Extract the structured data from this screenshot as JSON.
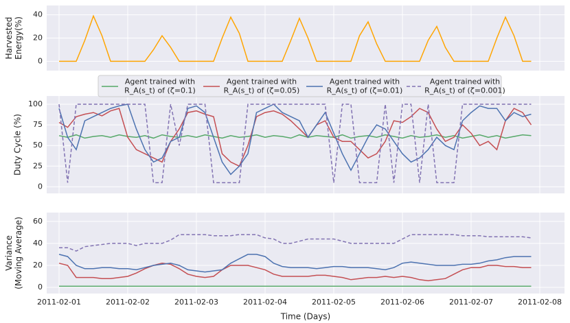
{
  "chart_data": [
    {
      "type": "line",
      "ylabel": "Harvested\nEnergy(%)",
      "x": [
        0,
        0.125,
        0.25,
        0.375,
        0.5,
        0.625,
        0.75,
        0.875,
        1,
        1.125,
        1.25,
        1.375,
        1.5,
        1.625,
        1.75,
        1.875,
        2,
        2.125,
        2.25,
        2.375,
        2.5,
        2.625,
        2.75,
        2.875,
        3,
        3.125,
        3.25,
        3.375,
        3.5,
        3.625,
        3.75,
        3.875,
        4,
        4.125,
        4.25,
        4.375,
        4.5,
        4.625,
        4.75,
        4.875,
        5,
        5.125,
        5.25,
        5.375,
        5.5,
        5.625,
        5.75,
        5.875,
        6,
        6.125,
        6.25,
        6.375,
        6.5,
        6.625,
        6.75,
        6.875
      ],
      "series": [
        {
          "name": "Harvested Energy",
          "color": "#ffa500",
          "dash": false,
          "values": [
            0,
            0,
            0,
            18,
            39,
            22,
            0,
            0,
            0,
            0,
            0,
            10,
            22,
            12,
            0,
            0,
            0,
            0,
            0,
            20,
            38,
            24,
            0,
            0,
            0,
            0,
            0,
            18,
            37,
            20,
            0,
            0,
            0,
            0,
            0,
            22,
            34,
            15,
            0,
            0,
            0,
            0,
            0,
            18,
            30,
            12,
            0,
            0,
            0,
            0,
            0,
            20,
            38,
            22,
            0,
            0
          ]
        }
      ],
      "xlim": [
        -0.18,
        7.36
      ],
      "ylim": [
        -8,
        48
      ],
      "yticks": [
        0,
        20,
        40
      ],
      "grid": true
    },
    {
      "type": "line",
      "ylabel": "Duty Cycle (%)",
      "x": [
        0,
        0.125,
        0.25,
        0.375,
        0.5,
        0.625,
        0.75,
        0.875,
        1,
        1.125,
        1.25,
        1.375,
        1.5,
        1.625,
        1.75,
        1.875,
        2,
        2.125,
        2.25,
        2.375,
        2.5,
        2.625,
        2.75,
        2.875,
        3,
        3.125,
        3.25,
        3.375,
        3.5,
        3.625,
        3.75,
        3.875,
        4,
        4.125,
        4.25,
        4.375,
        4.5,
        4.625,
        4.75,
        4.875,
        5,
        5.125,
        5.25,
        5.375,
        5.5,
        5.625,
        5.75,
        5.875,
        6,
        6.125,
        6.25,
        6.375,
        6.5,
        6.625,
        6.75,
        6.875
      ],
      "series": [
        {
          "name": "Agent trained with\nR_A(s_t) of (ζ=0.1)",
          "color": "#55a868",
          "dash": false,
          "values": [
            62,
            60,
            63,
            59,
            61,
            62,
            60,
            63,
            61,
            60,
            62,
            59,
            63,
            61,
            60,
            62,
            60,
            63,
            61,
            59,
            62,
            60,
            61,
            63,
            60,
            62,
            61,
            59,
            63,
            60,
            62,
            61,
            60,
            63,
            59,
            61,
            62,
            60,
            63,
            61,
            59,
            62,
            60,
            61,
            63,
            60,
            62,
            59,
            61,
            63,
            60,
            62,
            59,
            61,
            63,
            62
          ]
        },
        {
          "name": "Agent trained with\nR_A(s_t) of (ζ=0.05)",
          "color": "#c44e52",
          "dash": false,
          "values": [
            78,
            72,
            85,
            88,
            90,
            86,
            92,
            95,
            60,
            45,
            40,
            35,
            30,
            55,
            70,
            90,
            92,
            88,
            85,
            40,
            30,
            25,
            50,
            85,
            90,
            92,
            88,
            80,
            70,
            60,
            75,
            80,
            60,
            55,
            55,
            45,
            35,
            40,
            55,
            80,
            78,
            85,
            95,
            90,
            70,
            55,
            60,
            75,
            65,
            50,
            55,
            45,
            80,
            95,
            90,
            75
          ]
        },
        {
          "name": "Agent trained with\nR_A(s_t) of (ζ=0.01)",
          "color": "#4c72b0",
          "dash": false,
          "values": [
            95,
            60,
            45,
            80,
            85,
            90,
            95,
            98,
            100,
            70,
            45,
            30,
            35,
            55,
            60,
            95,
            98,
            90,
            60,
            30,
            15,
            25,
            40,
            90,
            95,
            100,
            90,
            85,
            80,
            60,
            75,
            90,
            65,
            40,
            20,
            40,
            60,
            75,
            70,
            55,
            40,
            30,
            35,
            45,
            60,
            50,
            45,
            80,
            90,
            98,
            95,
            95,
            80,
            90,
            85,
            88
          ]
        },
        {
          "name": "Agent trained with\nR_A(s_t) of (ζ=0.001)",
          "color": "#8172b2",
          "dash": true,
          "values": [
            100,
            5,
            100,
            100,
            100,
            100,
            100,
            100,
            100,
            100,
            100,
            5,
            5,
            100,
            50,
            100,
            100,
            100,
            5,
            5,
            5,
            5,
            100,
            100,
            100,
            100,
            100,
            100,
            100,
            100,
            100,
            100,
            5,
            100,
            100,
            5,
            5,
            5,
            100,
            5,
            100,
            100,
            5,
            100,
            5,
            5,
            5,
            100,
            100,
            100,
            100,
            100,
            100,
            100,
            100,
            100
          ]
        }
      ],
      "xlim": [
        -0.18,
        7.36
      ],
      "ylim": [
        -8,
        110
      ],
      "yticks": [
        0,
        25,
        50,
        75,
        100
      ],
      "grid": true,
      "legend": "top"
    },
    {
      "type": "line",
      "ylabel": "Variance\n(Moving Average)",
      "xlabel": "Time (Days)",
      "x": [
        0,
        0.125,
        0.25,
        0.375,
        0.5,
        0.625,
        0.75,
        0.875,
        1,
        1.125,
        1.25,
        1.375,
        1.5,
        1.625,
        1.75,
        1.875,
        2,
        2.125,
        2.25,
        2.375,
        2.5,
        2.625,
        2.75,
        2.875,
        3,
        3.125,
        3.25,
        3.375,
        3.5,
        3.625,
        3.75,
        3.875,
        4,
        4.125,
        4.25,
        4.375,
        4.5,
        4.625,
        4.75,
        4.875,
        5,
        5.125,
        5.25,
        5.375,
        5.5,
        5.625,
        5.75,
        5.875,
        6,
        6.125,
        6.25,
        6.375,
        6.5,
        6.625,
        6.75,
        6.875
      ],
      "series": [
        {
          "name": "ζ=0.1",
          "color": "#55a868",
          "dash": false,
          "values": [
            1,
            1,
            1,
            1,
            1,
            1,
            1,
            1,
            1,
            1,
            1,
            1,
            1,
            1,
            1,
            1,
            1,
            1,
            1,
            1,
            1,
            1,
            1,
            1,
            1,
            1,
            1,
            1,
            1,
            1,
            1,
            1,
            1,
            1,
            1,
            1,
            1,
            1,
            1,
            1,
            1,
            1,
            1,
            1,
            1,
            1,
            1,
            1,
            1,
            1,
            1,
            1,
            1,
            1,
            1,
            1
          ]
        },
        {
          "name": "ζ=0.05",
          "color": "#c44e52",
          "dash": false,
          "values": [
            22,
            20,
            9,
            9,
            9,
            8,
            8,
            9,
            10,
            13,
            17,
            20,
            22,
            21,
            17,
            12,
            10,
            9,
            10,
            16,
            20,
            20,
            20,
            18,
            16,
            12,
            10,
            10,
            10,
            10,
            11,
            11,
            10,
            9,
            7,
            8,
            9,
            9,
            10,
            9,
            10,
            9,
            7,
            6,
            7,
            8,
            12,
            16,
            18,
            18,
            20,
            20,
            19,
            19,
            18,
            18
          ]
        },
        {
          "name": "ζ=0.01",
          "color": "#4c72b0",
          "dash": false,
          "values": [
            30,
            28,
            20,
            17,
            17,
            18,
            18,
            17,
            17,
            16,
            18,
            20,
            21,
            22,
            20,
            16,
            15,
            14,
            15,
            16,
            22,
            26,
            30,
            30,
            28,
            22,
            19,
            18,
            18,
            18,
            17,
            18,
            19,
            19,
            18,
            18,
            18,
            17,
            16,
            18,
            22,
            23,
            22,
            21,
            20,
            20,
            20,
            21,
            21,
            22,
            24,
            25,
            27,
            28,
            28,
            28
          ]
        },
        {
          "name": "ζ=0.001",
          "color": "#8172b2",
          "dash": true,
          "values": [
            36,
            36,
            33,
            37,
            38,
            39,
            40,
            40,
            40,
            38,
            40,
            40,
            40,
            43,
            48,
            48,
            48,
            48,
            47,
            47,
            47,
            48,
            48,
            48,
            45,
            44,
            40,
            40,
            42,
            44,
            44,
            44,
            44,
            42,
            40,
            40,
            40,
            40,
            40,
            40,
            44,
            48,
            48,
            48,
            48,
            48,
            48,
            47,
            47,
            47,
            46,
            46,
            46,
            46,
            46,
            45
          ]
        }
      ],
      "xlim": [
        -0.18,
        7.36
      ],
      "ylim": [
        -5.6,
        68
      ],
      "yticks": [
        0,
        20,
        40,
        60
      ],
      "xticks": [
        {
          "value": 0,
          "label": "2011-02-01"
        },
        {
          "value": 1,
          "label": "2011-02-02"
        },
        {
          "value": 2,
          "label": "2011-02-03"
        },
        {
          "value": 3,
          "label": "2011-02-04"
        },
        {
          "value": 4,
          "label": "2011-02-05"
        },
        {
          "value": 5,
          "label": "2011-02-06"
        },
        {
          "value": 6,
          "label": "2011-02-07"
        },
        {
          "value": 7,
          "label": "2011-02-08"
        }
      ],
      "grid": true
    }
  ]
}
